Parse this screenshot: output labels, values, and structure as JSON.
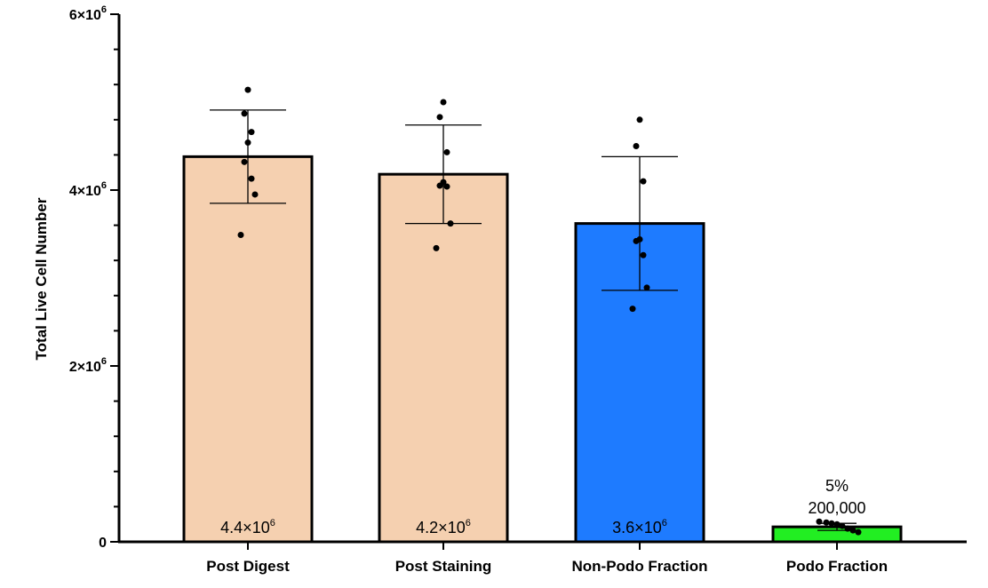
{
  "chart_data": {
    "type": "bar",
    "title": "",
    "xlabel": "",
    "ylabel": "Total Live Cell Number",
    "ylim": [
      0,
      6000000
    ],
    "yticks": [
      {
        "value": 0,
        "base": "0",
        "exp": ""
      },
      {
        "value": 2000000,
        "base": "2×10",
        "exp": "6"
      },
      {
        "value": 4000000,
        "base": "4×10",
        "exp": "6"
      },
      {
        "value": 6000000,
        "base": "6×10",
        "exp": "6"
      }
    ],
    "categories": [
      "Post Digest",
      "Post Staining",
      "Non-Podo Fraction",
      "Podo Fraction"
    ],
    "values": [
      4380000,
      4180000,
      3620000,
      170000
    ],
    "error": [
      530000,
      560000,
      760000,
      40000
    ],
    "bar_colors": [
      "#F5D0B0",
      "#F5D0B0",
      "#1E7BFF",
      "#22EE22"
    ],
    "bar_labels": [
      {
        "base": "4.4×10",
        "exp": "6"
      },
      {
        "base": "4.2×10",
        "exp": "6"
      },
      {
        "base": "3.6×10",
        "exp": "6"
      },
      {
        "base": "",
        "exp": ""
      }
    ],
    "annotations": {
      "percent": "5%",
      "count": "200,000"
    },
    "points": [
      [
        5140000,
        4870000,
        4660000,
        4540000,
        4320000,
        4130000,
        3950000,
        3490000
      ],
      [
        5000000,
        4830000,
        4430000,
        4090000,
        4050000,
        4040000,
        3620000,
        3340000
      ],
      [
        4800000,
        4500000,
        4100000,
        3440000,
        3420000,
        3260000,
        2890000,
        2650000
      ],
      [
        230000,
        220000,
        210000,
        200000,
        180000,
        150000,
        130000,
        110000
      ]
    ],
    "grid": false,
    "legend": "none"
  }
}
